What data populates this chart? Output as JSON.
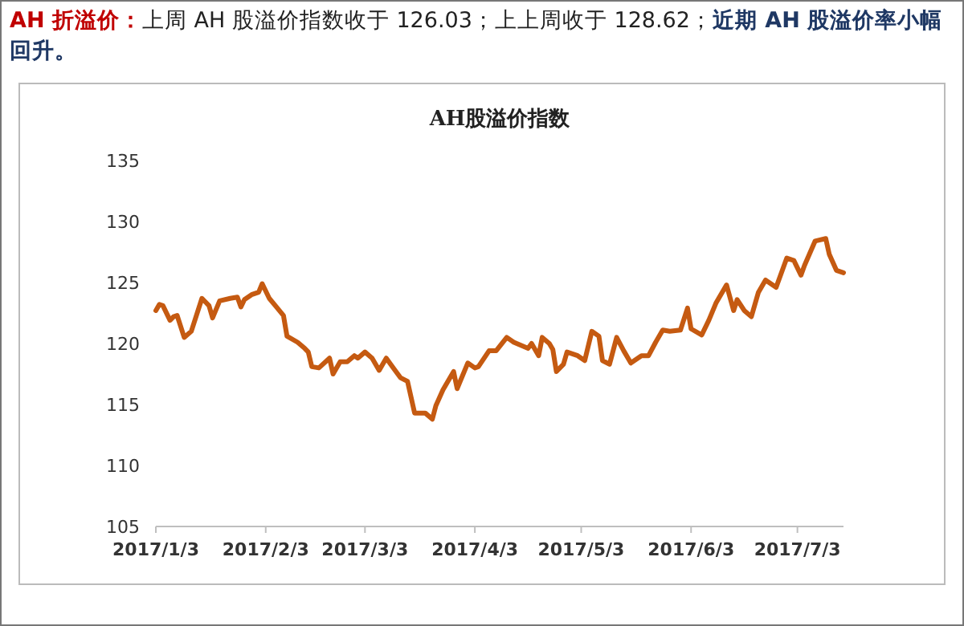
{
  "chart_data": {
    "type": "line",
    "title": "AH股溢价指数",
    "annotations": [
      "**AH 折溢价：**上周 AH 股溢价指数收于 126.03；上上周收于 128.62；**近期 AH 股溢价率小幅回升。**"
    ],
    "x": [
      "2017-01-03",
      "2017-01-04",
      "2017-01-05",
      "2017-01-07",
      "2017-01-08",
      "2017-01-09",
      "2017-01-11",
      "2017-01-13",
      "2017-01-16",
      "2017-01-18",
      "2017-01-19",
      "2017-01-21",
      "2017-01-24",
      "2017-01-26",
      "2017-01-27",
      "2017-01-28",
      "2017-01-30",
      "2017-02-01",
      "2017-02-02",
      "2017-02-04",
      "2017-02-06",
      "2017-02-08",
      "2017-02-09",
      "2017-02-12",
      "2017-02-14",
      "2017-02-15",
      "2017-02-16",
      "2017-02-18",
      "2017-02-21",
      "2017-02-22",
      "2017-02-24",
      "2017-02-26",
      "2017-02-28",
      "2017-03-01",
      "2017-03-03",
      "2017-03-05",
      "2017-03-07",
      "2017-03-09",
      "2017-03-11",
      "2017-03-13",
      "2017-03-15",
      "2017-03-17",
      "2017-03-20",
      "2017-03-22",
      "2017-03-23",
      "2017-03-25",
      "2017-03-28",
      "2017-03-29",
      "2017-04-01",
      "2017-04-03",
      "2017-04-04",
      "2017-04-07",
      "2017-04-09",
      "2017-04-12",
      "2017-04-14",
      "2017-04-18",
      "2017-04-19",
      "2017-04-21",
      "2017-04-22",
      "2017-04-24",
      "2017-04-25",
      "2017-04-26",
      "2017-04-28",
      "2017-04-29",
      "2017-05-02",
      "2017-05-04",
      "2017-05-06",
      "2017-05-08",
      "2017-05-09",
      "2017-05-11",
      "2017-05-13",
      "2017-05-15",
      "2017-05-17",
      "2017-05-20",
      "2017-05-22",
      "2017-05-24",
      "2017-05-26",
      "2017-05-28",
      "2017-05-31",
      "2017-06-02",
      "2017-06-03",
      "2017-06-06",
      "2017-06-08",
      "2017-06-10",
      "2017-06-13",
      "2017-06-15",
      "2017-06-16",
      "2017-06-18",
      "2017-06-20",
      "2017-06-22",
      "2017-06-24",
      "2017-06-27",
      "2017-06-30",
      "2017-07-02",
      "2017-07-04",
      "2017-07-05",
      "2017-07-08",
      "2017-07-11",
      "2017-07-12",
      "2017-07-14",
      "2017-07-16"
    ],
    "series": [
      {
        "color": "#c55a11",
        "values": [
          122.7,
          123.2,
          123.1,
          121.9,
          122.2,
          122.3,
          120.5,
          121.0,
          123.7,
          123.1,
          122.1,
          123.5,
          123.7,
          123.8,
          123.0,
          123.6,
          124.0,
          124.2,
          124.9,
          123.7,
          123.0,
          122.3,
          120.6,
          120.1,
          119.6,
          119.3,
          118.1,
          118.0,
          118.8,
          117.5,
          118.5,
          118.5,
          119.0,
          118.8,
          119.3,
          118.8,
          117.8,
          118.8,
          118.0,
          117.2,
          116.9,
          114.3,
          114.3,
          113.8,
          114.9,
          116.2,
          117.7,
          116.3,
          118.4,
          118.0,
          118.1,
          119.4,
          119.4,
          120.5,
          120.1,
          119.6,
          120.0,
          119.0,
          120.5,
          120.0,
          119.5,
          117.7,
          118.3,
          119.3,
          119.0,
          118.6,
          121.0,
          120.6,
          118.6,
          118.3,
          120.5,
          119.4,
          118.4,
          119.0,
          119.0,
          120.1,
          121.1,
          121.0,
          121.1,
          122.9,
          121.2,
          120.7,
          121.9,
          123.3,
          124.8,
          122.7,
          123.6,
          122.7,
          122.2,
          124.2,
          125.2,
          124.6,
          127.0,
          126.8,
          125.6,
          126.4,
          128.4,
          128.6,
          127.3,
          126.0,
          125.8
        ]
      }
    ],
    "xlim": [
      "2017-01-03",
      "2017-07-16"
    ],
    "xticks": [
      {
        "value": "2017-01-03",
        "label": "2017/1/3"
      },
      {
        "value": "2017-02-03",
        "label": "2017/2/3"
      },
      {
        "value": "2017-03-03",
        "label": "2017/3/3"
      },
      {
        "value": "2017-04-03",
        "label": "2017/4/3"
      },
      {
        "value": "2017-05-03",
        "label": "2017/5/3"
      },
      {
        "value": "2017-06-03",
        "label": "2017/6/3"
      },
      {
        "value": "2017-07-03",
        "label": "2017/7/3"
      }
    ],
    "ylim": [
      105,
      135
    ],
    "yticks": [
      105,
      110,
      115,
      120,
      125,
      130,
      135
    ]
  }
}
